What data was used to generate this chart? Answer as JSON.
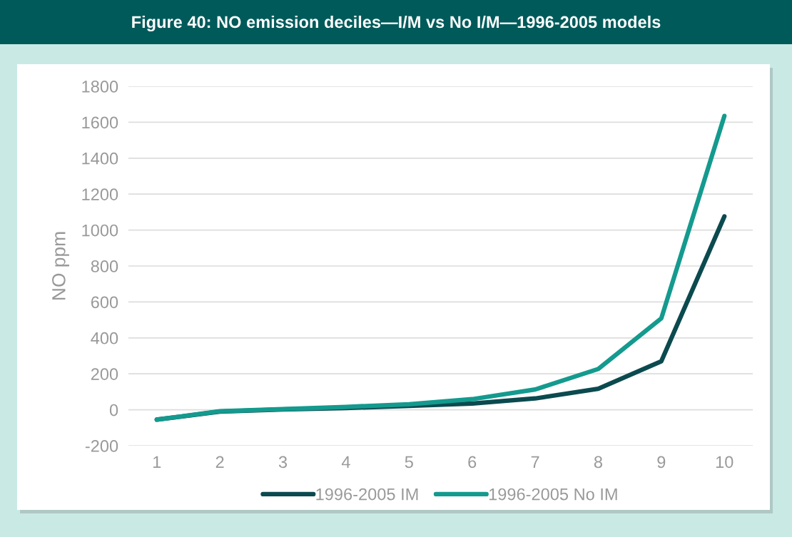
{
  "chart_data": {
    "type": "line",
    "title": "Figure 40: NO emission deciles—I/M vs No I/M—1996-2005 models",
    "ylabel": "NO ppm",
    "categories": [
      "1",
      "2",
      "3",
      "4",
      "5",
      "6",
      "7",
      "8",
      "9",
      "10"
    ],
    "series": [
      {
        "name": "1996-2005 IM",
        "color": "#0b4a4f",
        "values": [
          -55,
          -10,
          2,
          10,
          22,
          35,
          63,
          117,
          270,
          1076
        ]
      },
      {
        "name": "1996-2005 No IM",
        "color": "#149a8e",
        "values": [
          -55,
          -8,
          4,
          16,
          31,
          59,
          113,
          227,
          509,
          1635
        ]
      }
    ],
    "ylim": [
      -200,
      1800
    ],
    "yticks": [
      -200,
      0,
      200,
      400,
      600,
      800,
      1000,
      1200,
      1400,
      1600,
      1800
    ],
    "grid": "y",
    "legend": "bottom",
    "marker": "none",
    "line_style": "solid"
  }
}
